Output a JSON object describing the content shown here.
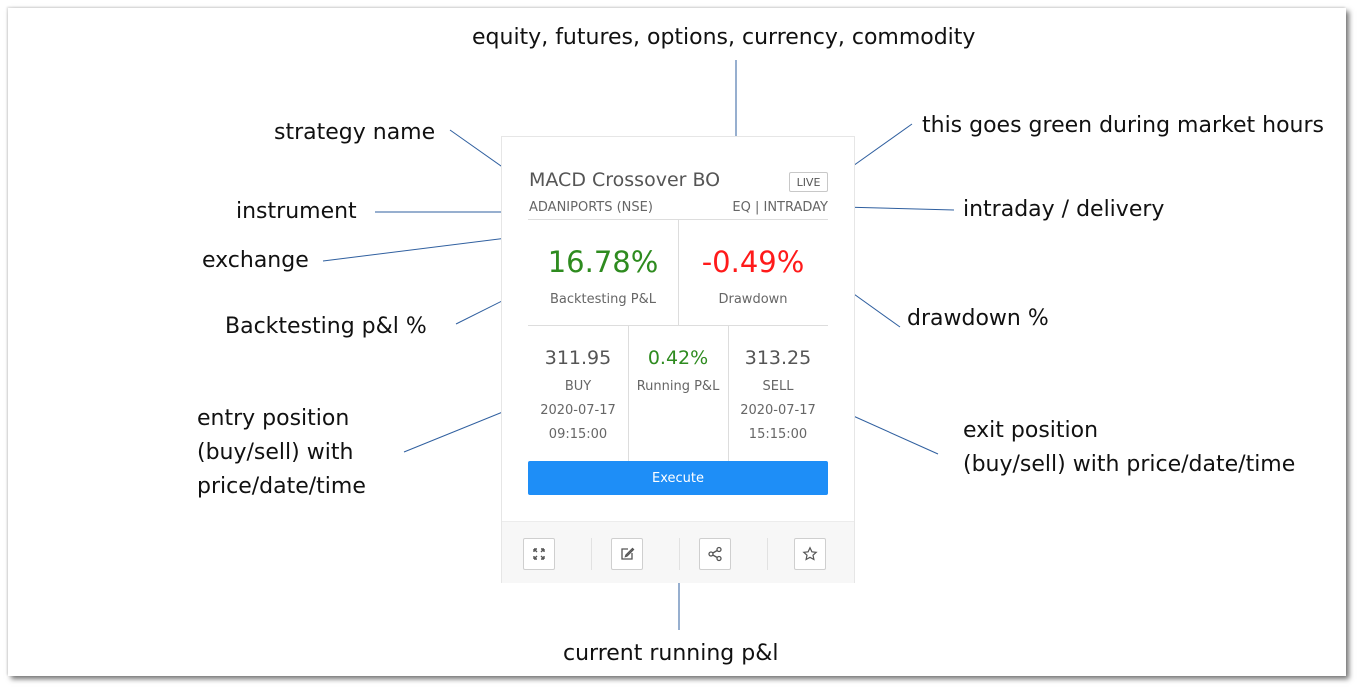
{
  "annotations": {
    "asset_classes": "equity, futures, options, currency, commodity",
    "strategy_name": "strategy name",
    "market_hours": "this goes green during market hours",
    "instrument": "instrument",
    "intraday_delivery": "intraday / delivery",
    "exchange": "exchange",
    "backtesting_pnl": "Backtesting p&l %",
    "drawdown": "drawdown %",
    "entry_position": "entry position\n(buy/sell) with\nprice/date/time",
    "exit_position": "exit position\n(buy/sell) with price/date/time",
    "running_pnl": "current running p&l"
  },
  "card": {
    "title": "MACD Crossover BO",
    "badge": "LIVE",
    "instrument": "ADANIPORTS (NSE)",
    "segment": "EQ | INTRADAY",
    "backtest_value": "16.78%",
    "backtest_label": "Backtesting P&L",
    "drawdown_value": "-0.49%",
    "drawdown_label": "Drawdown",
    "entry": {
      "price": "311.95",
      "side": "BUY",
      "date": "2020-07-17",
      "time": "09:15:00"
    },
    "running": {
      "value": "0.42%",
      "label": "Running P&L"
    },
    "exit": {
      "price": "313.25",
      "side": "SELL",
      "date": "2020-07-17",
      "time": "15:15:00"
    },
    "execute_label": "Execute",
    "footer_icons": [
      "expand-icon",
      "edit-icon",
      "share-icon",
      "star-icon"
    ]
  },
  "colors": {
    "positive": "#2e8b1f",
    "negative": "#ff1a1a",
    "primary_button": "#1e8ef7",
    "annotation_line": "#2f5f9f"
  }
}
